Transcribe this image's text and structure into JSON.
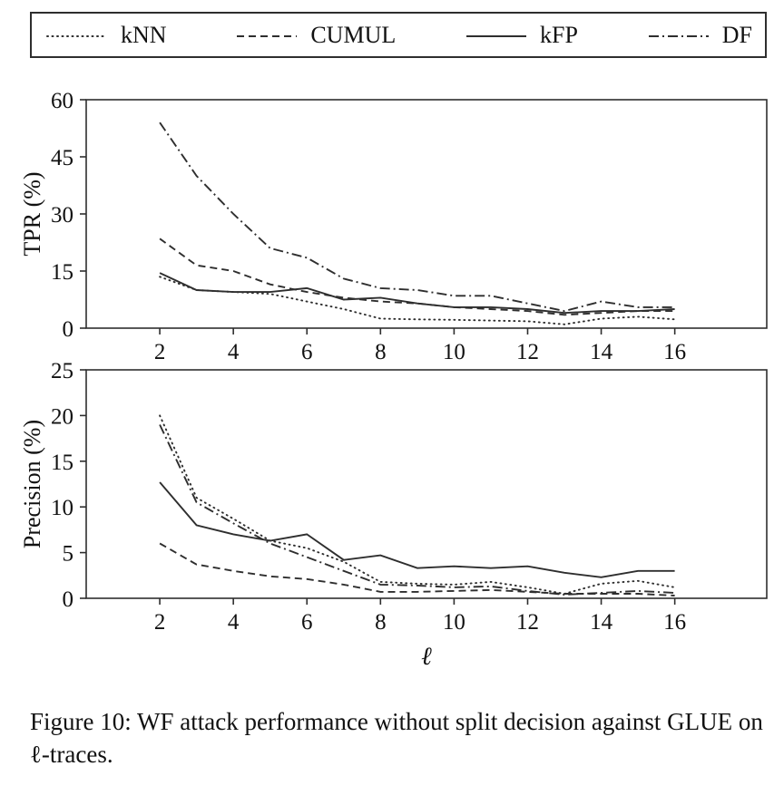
{
  "legend": {
    "items": [
      {
        "label": "kNN",
        "style": "dotted"
      },
      {
        "label": "CUMUL",
        "style": "dashed"
      },
      {
        "label": "kFP",
        "style": "solid"
      },
      {
        "label": "DF",
        "style": "dashdot"
      }
    ]
  },
  "caption": "Figure 10: WF attack performance without split decision against GLUE on ℓ-traces.",
  "colors": {
    "line": "#2e2e2e",
    "text": "#111111"
  },
  "chart_data": [
    {
      "type": "line",
      "title": "",
      "ylabel": "TPR (%)",
      "xlabel": "",
      "x": [
        2,
        3,
        4,
        5,
        6,
        7,
        8,
        9,
        10,
        11,
        12,
        13,
        14,
        15,
        16
      ],
      "xticks": [
        2,
        4,
        6,
        8,
        10,
        12,
        14,
        16
      ],
      "yticks": [
        0,
        15,
        30,
        45,
        60
      ],
      "xlim": [
        0,
        18.5
      ],
      "ylim": [
        0,
        60
      ],
      "grid": false,
      "legend_position": "top-outside",
      "series": [
        {
          "name": "kNN",
          "style": "dotted",
          "values": [
            13.5,
            10,
            9.5,
            9,
            7,
            5,
            2.5,
            2.3,
            2.2,
            2,
            1.8,
            1,
            2.5,
            3,
            2.3
          ]
        },
        {
          "name": "CUMUL",
          "style": "dashed",
          "values": [
            23.5,
            16.5,
            15,
            11.5,
            9.5,
            8,
            7,
            6.5,
            5.5,
            5,
            4.5,
            3.5,
            4,
            4.5,
            4.5
          ]
        },
        {
          "name": "kFP",
          "style": "solid",
          "values": [
            14.5,
            10,
            9.5,
            9.5,
            10.5,
            7.5,
            8,
            6.5,
            5.5,
            5.5,
            5,
            4,
            4.5,
            4.5,
            5
          ]
        },
        {
          "name": "DF",
          "style": "dashdot",
          "values": [
            54,
            40,
            30,
            21,
            18.5,
            13,
            10.5,
            10,
            8.5,
            8.5,
            6.5,
            4.5,
            7,
            5.5,
            5.5
          ]
        }
      ]
    },
    {
      "type": "line",
      "title": "",
      "ylabel": "Precision (%)",
      "xlabel": "ℓ",
      "x": [
        2,
        3,
        4,
        5,
        6,
        7,
        8,
        9,
        10,
        11,
        12,
        13,
        14,
        15,
        16
      ],
      "xticks": [
        2,
        4,
        6,
        8,
        10,
        12,
        14,
        16
      ],
      "yticks": [
        0,
        5,
        10,
        15,
        20,
        25
      ],
      "xlim": [
        0,
        18.5
      ],
      "ylim": [
        0,
        25
      ],
      "grid": false,
      "series": [
        {
          "name": "kNN",
          "style": "dotted",
          "values": [
            20,
            11,
            8.7,
            6.3,
            5.5,
            4,
            1.8,
            1.6,
            1.5,
            1.8,
            1.2,
            0.5,
            1.6,
            1.9,
            1.2
          ]
        },
        {
          "name": "CUMUL",
          "style": "dashed",
          "values": [
            6,
            3.7,
            3,
            2.4,
            2.1,
            1.5,
            0.7,
            0.7,
            0.8,
            0.9,
            0.7,
            0.5,
            0.5,
            0.5,
            0.3
          ]
        },
        {
          "name": "kFP",
          "style": "solid",
          "values": [
            12.7,
            8,
            7,
            6.3,
            7,
            4.2,
            4.7,
            3.3,
            3.5,
            3.3,
            3.5,
            2.8,
            2.3,
            3,
            3
          ]
        },
        {
          "name": "DF",
          "style": "dashdot",
          "values": [
            19,
            10.5,
            8.2,
            6,
            4.5,
            3,
            1.5,
            1.4,
            1.2,
            1.3,
            0.8,
            0.4,
            0.6,
            0.8,
            0.6
          ]
        }
      ]
    }
  ]
}
